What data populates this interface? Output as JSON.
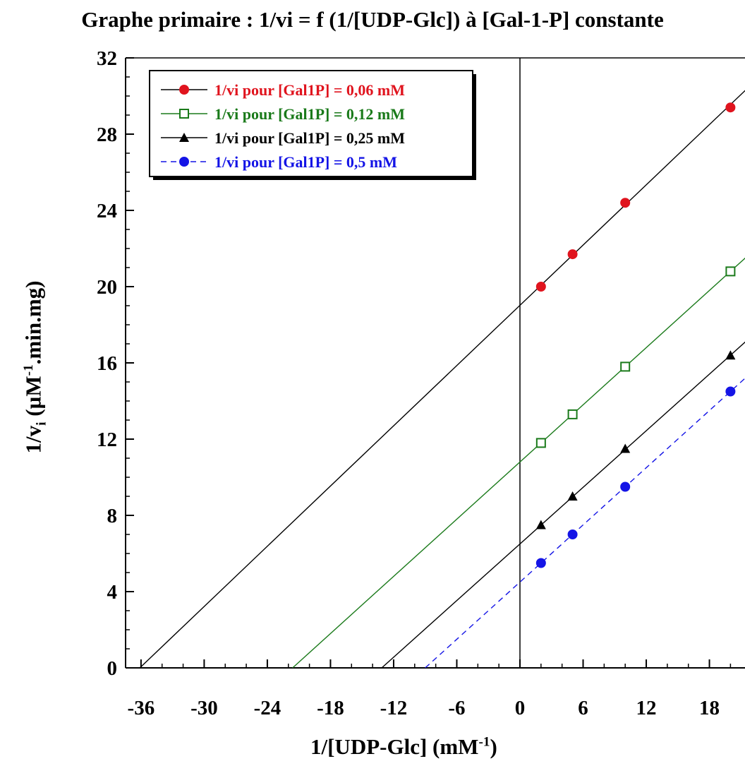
{
  "chart_data": {
    "type": "scatter",
    "title": "Graphe primaire : 1/vi = f (1/[UDP-Glc]) à [Gal-1-P] constante",
    "xlabel": {
      "main": "1/[UDP-Glc] (mM",
      "sup": "-1",
      "end": ")"
    },
    "ylabel": {
      "main": "1/v",
      "sub": "i",
      "mid": " (µM",
      "sup": "-1",
      "end": ".min.mg)"
    },
    "xlim": [
      -38,
      22
    ],
    "ylim": [
      0,
      32
    ],
    "xticks": [
      -36,
      -30,
      -24,
      -18,
      -12,
      -6,
      0,
      6,
      12,
      18
    ],
    "yticks": [
      0,
      4,
      8,
      12,
      16,
      20,
      24,
      28,
      32
    ],
    "grid": false,
    "legend_position": "top-left",
    "series": [
      {
        "name": "1/vi pour [Gal1P] = 0,06 mM",
        "color": "#e0141e",
        "marker": "filled-circle",
        "line": "solid",
        "line_color": "#000000",
        "x": [
          2,
          5,
          10,
          20
        ],
        "y": [
          20.0,
          21.7,
          24.4,
          29.4
        ],
        "fit": {
          "slope": 0.5267,
          "intercept": 19.02
        }
      },
      {
        "name": "1/vi pour [Gal1P] = 0,12 mM",
        "color": "#1a7a1a",
        "marker": "open-square",
        "line": "solid",
        "line_color": "#1a7a1a",
        "x": [
          2,
          5,
          10,
          20
        ],
        "y": [
          11.8,
          13.3,
          15.8,
          20.8
        ],
        "fit": {
          "slope": 0.5,
          "intercept": 10.8
        }
      },
      {
        "name": "1/vi pour [Gal1P] = 0,25 mM",
        "color": "#000000",
        "marker": "filled-triangle",
        "line": "solid",
        "line_color": "#000000",
        "x": [
          2,
          5,
          10,
          20
        ],
        "y": [
          7.5,
          9.0,
          11.5,
          16.4
        ],
        "fit": {
          "slope": 0.495,
          "intercept": 6.5
        }
      },
      {
        "name": "1/vi pour [Gal1P] = 0,5 mM",
        "color": "#1414e6",
        "marker": "filled-circle",
        "line": "dashed",
        "line_color": "#1414e6",
        "x": [
          2,
          5,
          10,
          20
        ],
        "y": [
          5.5,
          7.0,
          9.5,
          14.5
        ],
        "fit": {
          "slope": 0.5,
          "intercept": 4.5
        }
      }
    ]
  }
}
